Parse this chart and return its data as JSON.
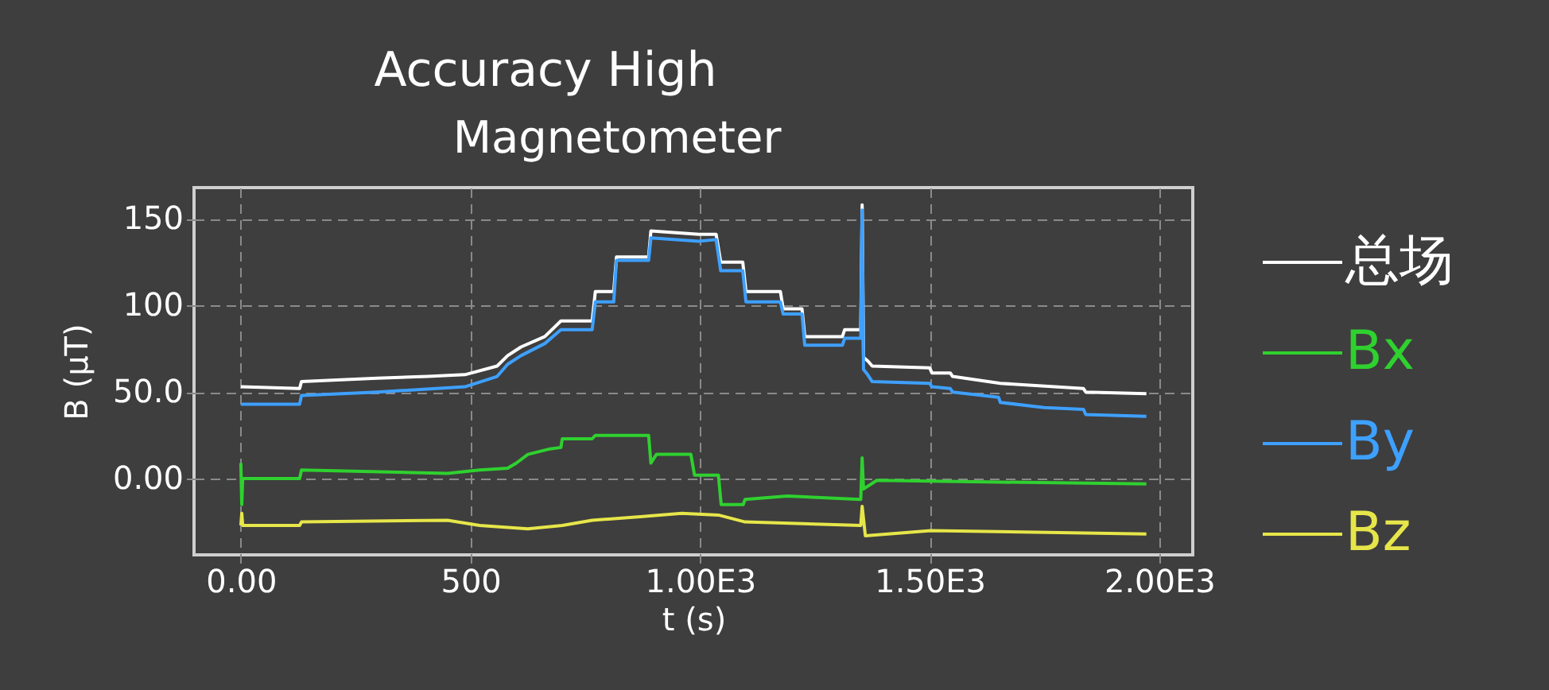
{
  "chart_data": {
    "type": "line",
    "title": "Accuracy High",
    "subtitle": "Magnetometer",
    "xlabel": "t (s)",
    "ylabel": "B (µT)",
    "xlim": [
      -102,
      2073
    ],
    "ylim": [
      -44,
      168
    ],
    "xticks": [
      {
        "value": 0,
        "label": "0.00"
      },
      500,
      {
        "value": 1000,
        "label": "1.00E3"
      },
      {
        "value": 1500,
        "label": "1.50E3"
      },
      {
        "value": 2000,
        "label": "2.00E3"
      }
    ],
    "yticks": [
      {
        "value": 0,
        "label": "0.00"
      },
      {
        "value": 50,
        "label": "50.0"
      },
      100,
      150
    ],
    "grid": true,
    "legend": "right",
    "line_style": "solid",
    "marker": "none",
    "series": [
      {
        "name": "总场",
        "color": "#ffffff",
        "x": [
          0,
          128,
          132,
          297,
          407,
          488,
          558,
          581,
          610,
          662,
          697,
          765,
          772,
          812,
          818,
          888,
          893,
          997,
          1035,
          1045,
          1093,
          1100,
          1175,
          1181,
          1222,
          1228,
          1310,
          1315,
          1350,
          1353,
          1356,
          1365,
          1375,
          1500,
          1505,
          1545,
          1550,
          1654,
          1835,
          1840,
          1972
        ],
        "values": [
          53,
          52,
          56,
          58,
          59,
          60,
          65,
          71,
          76,
          82,
          91,
          91,
          108,
          108,
          128,
          128,
          143,
          141,
          141,
          125,
          125,
          108,
          108,
          98,
          98,
          82,
          82,
          86,
          86,
          158,
          70,
          68,
          65,
          64,
          61,
          61,
          59,
          55,
          52,
          50,
          49
        ]
      },
      {
        "name": "Bx",
        "color": "#2fd12f",
        "x": [
          0,
          2,
          4,
          128,
          132,
          450,
          520,
          581,
          600,
          625,
          670,
          697,
          700,
          765,
          772,
          888,
          893,
          905,
          980,
          988,
          1040,
          1046,
          1094,
          1098,
          1190,
          1350,
          1353,
          1356,
          1385,
          1654,
          1972
        ],
        "values": [
          9,
          -15,
          0,
          0,
          5,
          3,
          5,
          6,
          9,
          14,
          17,
          18,
          23,
          23,
          25,
          25,
          9,
          14,
          14,
          2,
          2,
          -15,
          -15,
          -12,
          -10,
          -12,
          12,
          -6,
          -1,
          -2,
          -3
        ]
      },
      {
        "name": "By",
        "color": "#3ea0ff",
        "x": [
          0,
          128,
          132,
          297,
          488,
          558,
          581,
          610,
          662,
          697,
          765,
          772,
          812,
          818,
          888,
          893,
          997,
          1035,
          1045,
          1093,
          1100,
          1175,
          1181,
          1222,
          1228,
          1310,
          1315,
          1350,
          1353,
          1356,
          1365,
          1375,
          1500,
          1505,
          1545,
          1550,
          1650,
          1654,
          1750,
          1835,
          1840,
          1972
        ],
        "values": [
          43,
          43,
          48,
          50,
          53,
          59,
          66,
          71,
          78,
          86,
          86,
          102,
          102,
          126,
          126,
          139,
          137,
          138,
          120,
          120,
          102,
          102,
          95,
          95,
          77,
          77,
          81,
          81,
          155,
          63,
          60,
          56,
          55,
          53,
          52,
          50,
          47,
          44,
          41,
          40,
          37,
          36
        ]
      },
      {
        "name": "Bz",
        "color": "#e6e64a",
        "x": [
          0,
          2,
          4,
          128,
          132,
          450,
          520,
          625,
          700,
          765,
          870,
          960,
          1040,
          1098,
          1350,
          1353,
          1360,
          1503,
          1972
        ],
        "values": [
          -27,
          -20,
          -27,
          -27,
          -25,
          -24,
          -27,
          -29,
          -27,
          -24,
          -22,
          -20,
          -21,
          -25,
          -27,
          -16,
          -33,
          -30,
          -32
        ]
      }
    ]
  }
}
